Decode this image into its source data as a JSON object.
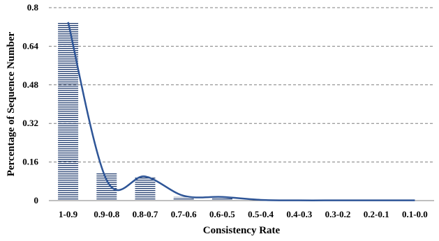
{
  "chart_data": {
    "type": "bar",
    "xlabel": "Consistency Rate",
    "ylabel": "Percentage of Sequence Number",
    "categories": [
      "1-0.9",
      "0.9-0.8",
      "0.8-0.7",
      "0.7-0.6",
      "0.6-0.5",
      "0.5-0.4",
      "0.4-0.3",
      "0.3-0.2",
      "0.2-0.1",
      "0.1-0.0"
    ],
    "values": [
      0.74,
      0.115,
      0.1,
      0.015,
      0.015,
      0.002,
      0.001,
      0.001,
      0.001,
      0.001
    ],
    "smooth_line": [
      0.74,
      0.085,
      0.1,
      0.02,
      0.015,
      0.003,
      0.001,
      0.001,
      0.001,
      0.001
    ],
    "ylim": [
      0,
      0.8
    ],
    "yticks": [
      "0",
      "0.16",
      "0.32",
      "0.48",
      "0.64",
      "0.8"
    ],
    "grid": true,
    "colors": {
      "bar": "#1f3b6e",
      "line": "#2e5597",
      "grid": "#7f7f7f"
    }
  }
}
